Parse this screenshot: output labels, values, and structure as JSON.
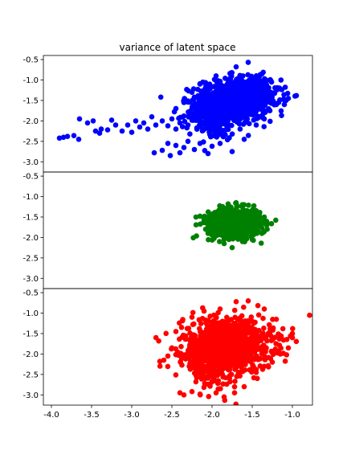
{
  "chart_data": {
    "type": "scatter",
    "title": "variance of latent space",
    "xlim": [
      -4.1,
      -0.75
    ],
    "x_ticks": [
      "-4.0",
      "-3.5",
      "-3.0",
      "-2.5",
      "-2.0",
      "-1.5",
      "-1.0"
    ],
    "x_tick_values": [
      -4.0,
      -3.5,
      -3.0,
      -2.5,
      -2.0,
      -1.5,
      -1.0
    ],
    "shared_x": true,
    "grid": false,
    "panels": [
      {
        "name": "",
        "color": "#0000ff",
        "ylim": [
          -3.25,
          -0.4
        ],
        "y_ticks": [
          "-0.5",
          "-1.0",
          "-1.5",
          "-2.0",
          "-2.5",
          "-3.0"
        ],
        "y_tick_values": [
          -0.5,
          -1.0,
          -1.5,
          -2.0,
          -2.5,
          -3.0
        ],
        "clusters": [
          {
            "cx": -1.75,
            "cy": -1.55,
            "sx": 0.22,
            "sy": 0.28,
            "n": 550
          },
          {
            "cx": -1.55,
            "cy": -1.35,
            "sx": 0.2,
            "sy": 0.22,
            "n": 300
          },
          {
            "cx": -2.0,
            "cy": -1.85,
            "sx": 0.15,
            "sy": 0.3,
            "n": 250
          }
        ],
        "points": [
          [
            -3.9,
            -2.42
          ],
          [
            -3.85,
            -2.4
          ],
          [
            -3.8,
            -2.38
          ],
          [
            -3.72,
            -2.36
          ],
          [
            -3.66,
            -2.45
          ],
          [
            -3.65,
            -1.95
          ],
          [
            -3.55,
            -2.05
          ],
          [
            -3.48,
            -2.0
          ],
          [
            -3.45,
            -2.25
          ],
          [
            -3.4,
            -2.3
          ],
          [
            -3.38,
            -2.2
          ],
          [
            -3.3,
            -2.22
          ],
          [
            -3.25,
            -1.98
          ],
          [
            -3.2,
            -2.1
          ],
          [
            -3.12,
            -2.25
          ],
          [
            -3.05,
            -2.1
          ],
          [
            -3.0,
            -2.28
          ],
          [
            -2.95,
            -2.0
          ],
          [
            -2.9,
            -2.15
          ],
          [
            -2.85,
            -2.05
          ],
          [
            -2.8,
            -2.2
          ],
          [
            -2.75,
            -1.9
          ],
          [
            -2.7,
            -2.1
          ],
          [
            -2.62,
            -2.0
          ],
          [
            -2.55,
            -2.12
          ],
          [
            -2.5,
            -1.95
          ],
          [
            -2.45,
            -2.2
          ],
          [
            -2.4,
            -2.05
          ],
          [
            -2.35,
            -1.88
          ],
          [
            -2.3,
            -2.1
          ],
          [
            -2.72,
            -2.78
          ],
          [
            -2.62,
            -2.72
          ],
          [
            -2.55,
            -2.55
          ],
          [
            -2.52,
            -2.85
          ],
          [
            -2.45,
            -2.6
          ],
          [
            -2.4,
            -2.78
          ],
          [
            -2.35,
            -2.65
          ],
          [
            -2.3,
            -2.5
          ],
          [
            -2.22,
            -2.7
          ],
          [
            -2.15,
            -2.55
          ],
          [
            -2.05,
            -2.8
          ],
          [
            -2.0,
            -2.62
          ],
          [
            -1.9,
            -2.55
          ],
          [
            -1.75,
            -2.75
          ],
          [
            -1.6,
            -2.45
          ],
          [
            -1.45,
            -2.1
          ],
          [
            -1.35,
            -1.95
          ],
          [
            -1.28,
            -1.75
          ],
          [
            -1.2,
            -1.6
          ],
          [
            -1.08,
            -1.5
          ],
          [
            -1.05,
            -1.45
          ],
          [
            -1.1,
            -1.6
          ],
          [
            -1.55,
            -0.57
          ],
          [
            -1.7,
            -0.68
          ],
          [
            -1.95,
            -0.9
          ],
          [
            -2.15,
            -1.1
          ],
          [
            -2.25,
            -1.3
          ],
          [
            -2.35,
            -1.55
          ],
          [
            -2.45,
            -1.7
          ],
          [
            -2.2,
            -1.95
          ]
        ]
      },
      {
        "name": "",
        "color": "#008000",
        "ylim": [
          -3.25,
          -0.4
        ],
        "y_ticks": [
          "-0.5",
          "-1.0",
          "-1.5",
          "-2.0",
          "-2.5",
          "-3.0"
        ],
        "y_tick_values": [
          -0.5,
          -1.0,
          -1.5,
          -2.0,
          -2.5,
          -3.0
        ],
        "clusters": [
          {
            "cx": -1.72,
            "cy": -1.65,
            "sx": 0.16,
            "sy": 0.17,
            "n": 700
          }
        ],
        "points": [
          [
            -2.2,
            -1.5
          ],
          [
            -2.15,
            -1.48
          ],
          [
            -2.1,
            -1.55
          ],
          [
            -2.08,
            -1.8
          ],
          [
            -2.05,
            -1.9
          ],
          [
            -1.98,
            -1.95
          ],
          [
            -1.9,
            -1.3
          ],
          [
            -1.8,
            -1.18
          ],
          [
            -1.7,
            -1.15
          ],
          [
            -1.6,
            -1.2
          ],
          [
            -1.45,
            -1.35
          ],
          [
            -1.35,
            -1.5
          ],
          [
            -1.32,
            -1.7
          ],
          [
            -1.38,
            -1.9
          ],
          [
            -1.5,
            -2.05
          ],
          [
            -1.62,
            -2.1
          ],
          [
            -1.75,
            -2.25
          ],
          [
            -1.85,
            -2.15
          ]
        ]
      },
      {
        "name": "",
        "color": "#ff0000",
        "ylim": [
          -3.25,
          -0.4
        ],
        "y_ticks": [
          "-0.5",
          "-1.0",
          "-1.5",
          "-2.0",
          "-2.5",
          "-3.0"
        ],
        "y_tick_values": [
          -0.5,
          -1.0,
          -1.5,
          -2.0,
          -2.5,
          -3.0
        ],
        "clusters": [
          {
            "cx": -1.8,
            "cy": -1.75,
            "sx": 0.28,
            "sy": 0.32,
            "n": 900
          },
          {
            "cx": -2.0,
            "cy": -2.2,
            "sx": 0.18,
            "sy": 0.3,
            "n": 200
          }
        ],
        "points": [
          [
            -2.65,
            -2.18
          ],
          [
            -2.6,
            -2.15
          ],
          [
            -2.55,
            -2.05
          ],
          [
            -2.5,
            -1.85
          ],
          [
            -2.45,
            -1.45
          ],
          [
            -2.38,
            -1.35
          ],
          [
            -2.4,
            -2.95
          ],
          [
            -2.35,
            -3.0
          ],
          [
            -2.25,
            -2.92
          ],
          [
            -2.15,
            -2.98
          ],
          [
            -1.95,
            -2.95
          ],
          [
            -1.85,
            -3.05
          ],
          [
            -1.72,
            -2.95
          ],
          [
            -1.6,
            -2.8
          ],
          [
            -1.45,
            -2.45
          ],
          [
            -1.35,
            -2.3
          ],
          [
            -1.25,
            -2.2
          ],
          [
            -1.15,
            -2.0
          ],
          [
            -1.05,
            -1.85
          ],
          [
            -1.0,
            -1.6
          ],
          [
            -1.0,
            -1.5
          ],
          [
            -1.15,
            -1.55
          ],
          [
            -1.2,
            -1.15
          ],
          [
            -1.35,
            -0.9
          ],
          [
            -1.55,
            -0.7
          ],
          [
            -1.7,
            -0.72
          ],
          [
            -1.9,
            -0.9
          ],
          [
            -2.1,
            -0.95
          ],
          [
            -2.25,
            -1.1
          ]
        ]
      }
    ]
  }
}
